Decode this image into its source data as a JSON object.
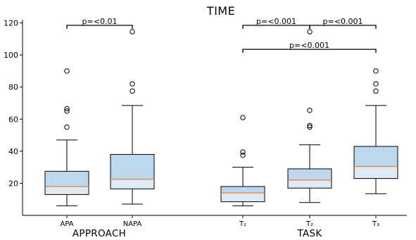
{
  "chart_data": {
    "type": "boxplot",
    "title": "TIME",
    "ylim": [
      0,
      122
    ],
    "yticks": [
      20,
      40,
      60,
      80,
      100,
      120
    ],
    "colors": {
      "box_upper": "#bdd7ee",
      "box_lower": "#deebf7",
      "median": "#e8833a",
      "edge": "#000000"
    },
    "groups": [
      {
        "label": "APPROACH",
        "categories": [
          "APA",
          "NAPA"
        ]
      },
      {
        "label": "TASK",
        "categories": [
          "T₁",
          "T₂",
          "T₃"
        ]
      }
    ],
    "boxes": [
      {
        "category": "APA",
        "whisker_low": 6,
        "q1": 13,
        "median": 18,
        "q3": 27.5,
        "whisker_high": 47,
        "outliers": [
          55,
          65,
          66.5,
          90
        ]
      },
      {
        "category": "NAPA",
        "whisker_low": 7,
        "q1": 16.5,
        "median": 22.5,
        "q3": 38,
        "whisker_high": 68.5,
        "outliers": [
          77.5,
          82,
          114.5
        ]
      },
      {
        "category": "T₁",
        "whisker_low": 6,
        "q1": 8.5,
        "median": 14,
        "q3": 18,
        "whisker_high": 30,
        "outliers": [
          37.5,
          39.5,
          61
        ]
      },
      {
        "category": "T₂",
        "whisker_low": 8,
        "q1": 17,
        "median": 22,
        "q3": 29,
        "whisker_high": 44,
        "outliers": [
          55,
          56,
          65.5,
          114.5
        ]
      },
      {
        "category": "T₃",
        "whisker_low": 13.5,
        "q1": 23,
        "median": 30.5,
        "q3": 43,
        "whisker_high": 68.5,
        "outliers": [
          77.5,
          82,
          90
        ]
      }
    ],
    "annotations": [
      {
        "from": "APA",
        "to": "NAPA",
        "y": 118.5,
        "text": "p=<0.01"
      },
      {
        "from": "T₁",
        "to": "T₂",
        "y": 118.5,
        "text": "p=<0.001"
      },
      {
        "from": "T₂",
        "to": "T₃",
        "y": 118.5,
        "text": "p=<0.001"
      },
      {
        "from": "T₁",
        "to": "T₃",
        "y": 103.5,
        "text": "p=<0.001"
      }
    ]
  }
}
